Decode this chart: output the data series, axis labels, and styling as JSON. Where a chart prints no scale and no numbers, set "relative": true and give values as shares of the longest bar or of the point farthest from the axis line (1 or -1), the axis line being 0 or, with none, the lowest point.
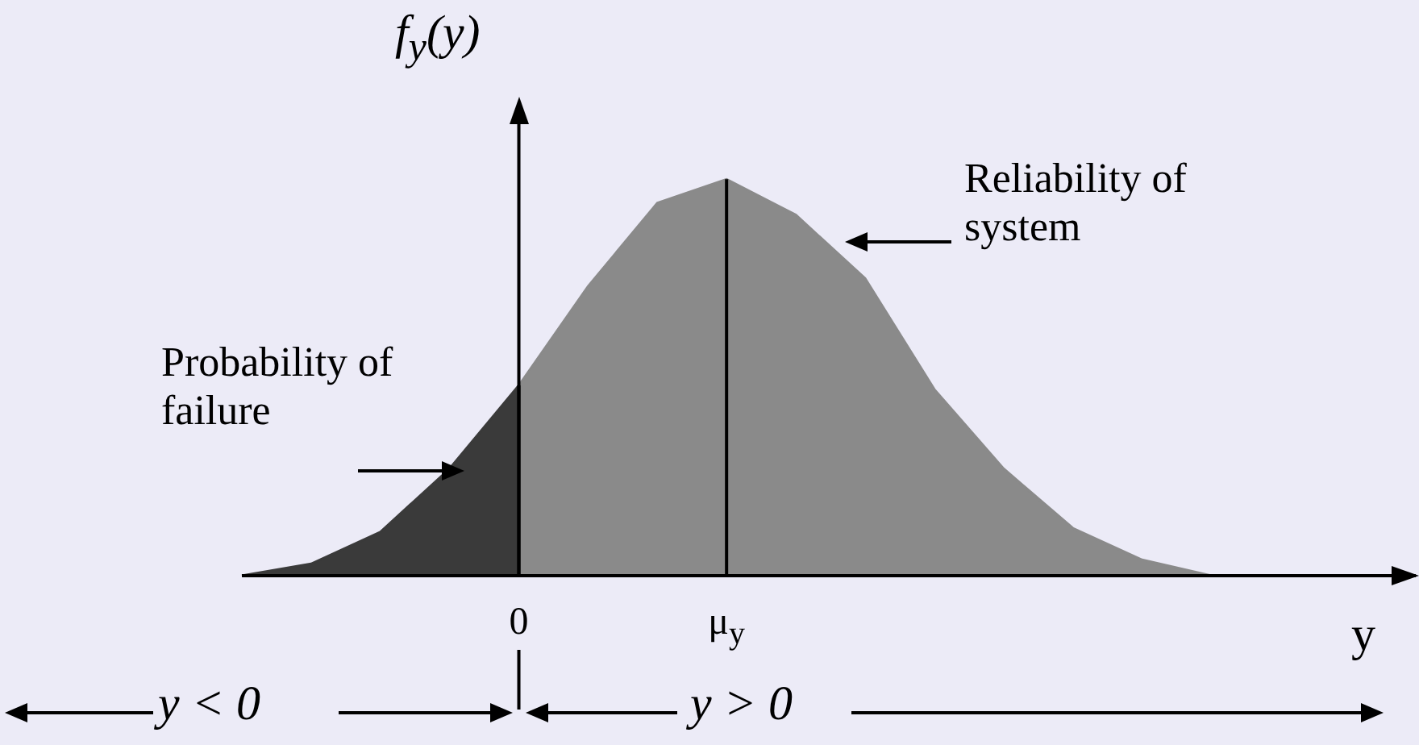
{
  "chart_data": {
    "type": "area",
    "relative": true,
    "ylabel": "f$_{y}$(y)",
    "xlabel": "y",
    "categories": [
      null,
      null,
      null,
      null,
      "0",
      null,
      null,
      "μ$_{y}$",
      null,
      null,
      null,
      null,
      null,
      null,
      null,
      null,
      null,
      null
    ],
    "series": [
      {
        "color": "#3a3a3a",
        "values": [
          0,
          0.03,
          0.11,
          0.27,
          0.48,
          null,
          null,
          null,
          null,
          null,
          null,
          null,
          null,
          null,
          null,
          null,
          null,
          null
        ]
      },
      {
        "color": "#8a8a8a",
        "values": [
          null,
          null,
          null,
          null,
          0.48,
          0.73,
          0.94,
          1,
          0.91,
          0.75,
          0.47,
          0.27,
          0.12,
          0.04,
          0,
          null,
          null,
          null
        ]
      }
    ],
    "annotations": [
      "Probability of failure",
      "Reliability of system",
      "y < 0",
      "y > 0"
    ],
    "grid": "x",
    "legend": false
  }
}
